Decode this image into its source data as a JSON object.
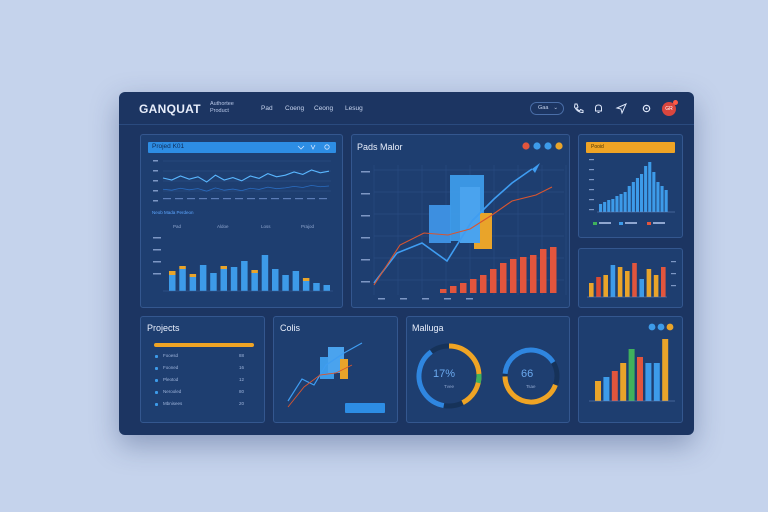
{
  "app": {
    "logo": "GANQUAT",
    "subtitle": "Authortee\nProduct"
  },
  "nav": [
    "Pad",
    "Coeng",
    "Ceong",
    "Lesug"
  ],
  "search": {
    "label": "Gaa"
  },
  "avatar": "GR",
  "panels": {
    "p1": {
      "title": "Projed K01",
      "caption": "Neob Mada Perdeon",
      "cols": [
        "Pad",
        "Aldoe",
        "Loss",
        "Prajod"
      ],
      "line_values": [
        0.55,
        0.5,
        0.6,
        0.52,
        0.58,
        0.45,
        0.62,
        0.5,
        0.56,
        0.48,
        0.6,
        0.54,
        0.66,
        0.58,
        0.62,
        0.7,
        0.64,
        0.75,
        0.68,
        0.72
      ]
    },
    "p2": {
      "title": "Pads Malor"
    },
    "p3": {
      "title": "Pooid"
    },
    "projects": {
      "title": "Projects",
      "items": [
        {
          "label": "Fooesd",
          "value": "88"
        },
        {
          "label": "Fooned",
          "value": "16"
        },
        {
          "label": "Pleotod",
          "value": "12"
        },
        {
          "label": "Nerooled",
          "value": "80"
        },
        {
          "label": "Mbnisees",
          "value": "20"
        }
      ]
    },
    "coils": {
      "title": "Colis",
      "button": ""
    },
    "malluga": {
      "title": "Malluga",
      "gauge1_value": "17%",
      "gauge1_sub": "Tvee",
      "gauge2_value": "66",
      "gauge2_sub": "Tsae"
    },
    "p8": {
      "title": ""
    }
  },
  "colors": {
    "blue": "#3d9be9",
    "orange": "#e9a42a",
    "red": "#e2553d",
    "green": "#3fb15c",
    "accent": "#ff5a45"
  }
}
